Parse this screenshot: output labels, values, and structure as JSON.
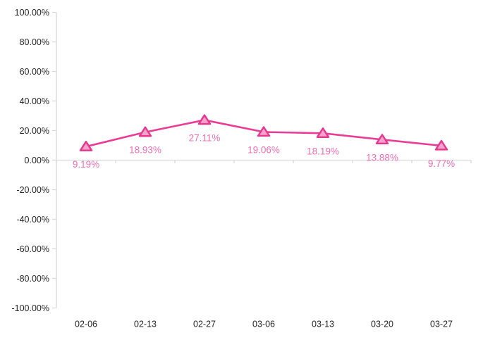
{
  "chart_data": {
    "type": "line",
    "title": "",
    "xlabel": "",
    "ylabel": "",
    "legend": "none",
    "grid": false,
    "marker_shape": "triangle-up",
    "categories": [
      "02-06",
      "02-13",
      "02-27",
      "03-06",
      "03-13",
      "03-20",
      "03-27"
    ],
    "series": [
      {
        "name": "",
        "values": [
          9.19,
          18.93,
          27.11,
          19.06,
          18.19,
          13.88,
          9.77
        ],
        "data_labels": [
          "9.19%",
          "18.93%",
          "27.11%",
          "19.06%",
          "18.19%",
          "13.88%",
          "9.77%"
        ]
      }
    ],
    "ylim": [
      -100,
      100
    ],
    "y_ticks": [
      {
        "value": 100,
        "label": "100.00%"
      },
      {
        "value": 80,
        "label": "80.00%"
      },
      {
        "value": 60,
        "label": "60.00%"
      },
      {
        "value": 40,
        "label": "40.00%"
      },
      {
        "value": 20,
        "label": "20.00%"
      },
      {
        "value": 0,
        "label": "0.00%"
      },
      {
        "value": -20,
        "label": "-20.00%"
      },
      {
        "value": -40,
        "label": "-40.00%"
      },
      {
        "value": -60,
        "label": "-60.00%"
      },
      {
        "value": -80,
        "label": "-80.00%"
      },
      {
        "value": -100,
        "label": "-100.00%"
      }
    ],
    "colors": {
      "line": "#EA3C96",
      "marker_fill": "#F5A3CC",
      "marker_border": "#E8368F",
      "data_label": "#F06EB2",
      "axis_line": "#D9D9D9",
      "axis_text": "#262626",
      "background": "#FFFFFF"
    }
  }
}
